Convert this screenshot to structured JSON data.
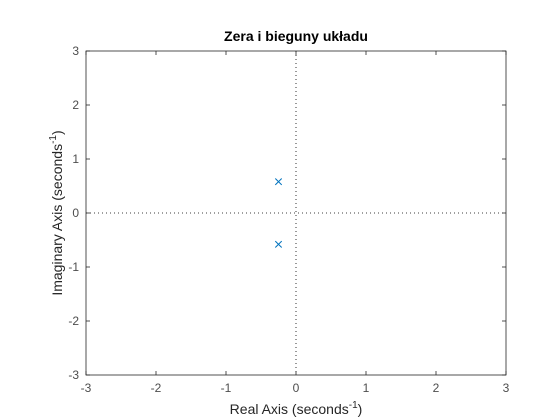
{
  "chart_data": {
    "type": "scatter",
    "title": "Zera i bieguny układu",
    "xlabel": {
      "main": "Real Axis (seconds",
      "sup": "-1",
      "close": ")"
    },
    "ylabel": {
      "main": "Imaginary Axis (seconds",
      "sup": "-1",
      "close": ")"
    },
    "xlim": [
      -3,
      3
    ],
    "ylim": [
      -3,
      3
    ],
    "xticks": [
      -3,
      -2,
      -1,
      0,
      1,
      2,
      3
    ],
    "yticks": [
      -3,
      -2,
      -1,
      0,
      1,
      2,
      3
    ],
    "grid": false,
    "reference_lines": "dotted lines at x=0 and y=0",
    "series": [
      {
        "marker": "x",
        "color": "#0072BD",
        "points": [
          {
            "x": -0.25,
            "y": 0.58
          },
          {
            "x": -0.25,
            "y": -0.58
          }
        ]
      }
    ]
  },
  "colors": {
    "axes": "#262626",
    "tick_text": "#4d4d4d",
    "marker": "#0072BD",
    "reference": "#000000"
  }
}
